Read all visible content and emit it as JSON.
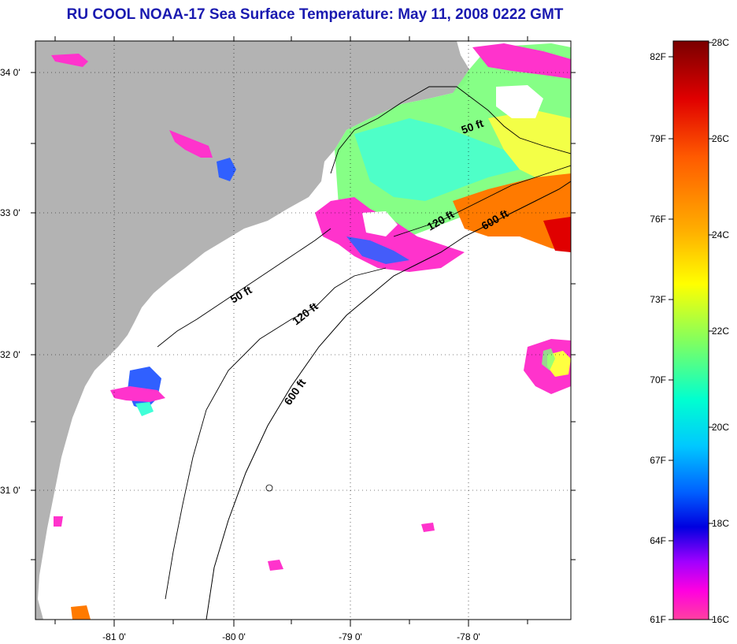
{
  "title": "RU COOL  NOAA-17  Sea Surface Temperature:  May 11, 2008 0222 GMT",
  "map": {
    "lat_labels": [
      "34 0'",
      "33 0'",
      "32 0'",
      "31 0'"
    ],
    "lon_labels": [
      "-81 0'",
      "-80 0'",
      "-79 0'",
      "-78 0'"
    ],
    "depth_contours": [
      {
        "label": "50 ft"
      },
      {
        "label": "120 ft"
      },
      {
        "label": "600 ft"
      },
      {
        "label": "50 ft"
      },
      {
        "label": "120 ft"
      },
      {
        "label": "600 ft"
      }
    ],
    "land_color": "#b3b3b3",
    "ocean_color": "#ffffff"
  },
  "colorbar": {
    "fahrenheit_labels": [
      "82F",
      "79F",
      "76F",
      "73F",
      "70F",
      "67F",
      "64F",
      "61F"
    ],
    "celsius_labels": [
      "28C",
      "26C",
      "24C",
      "22C",
      "20C",
      "18C",
      "16C"
    ],
    "colors_top_to_bottom": [
      "#7a0000",
      "#ff0000",
      "#ff7a00",
      "#ffff00",
      "#7fff7f",
      "#00ffff",
      "#0080ff",
      "#0000ff",
      "#8000ff",
      "#ff00ff",
      "#ff3399"
    ]
  }
}
